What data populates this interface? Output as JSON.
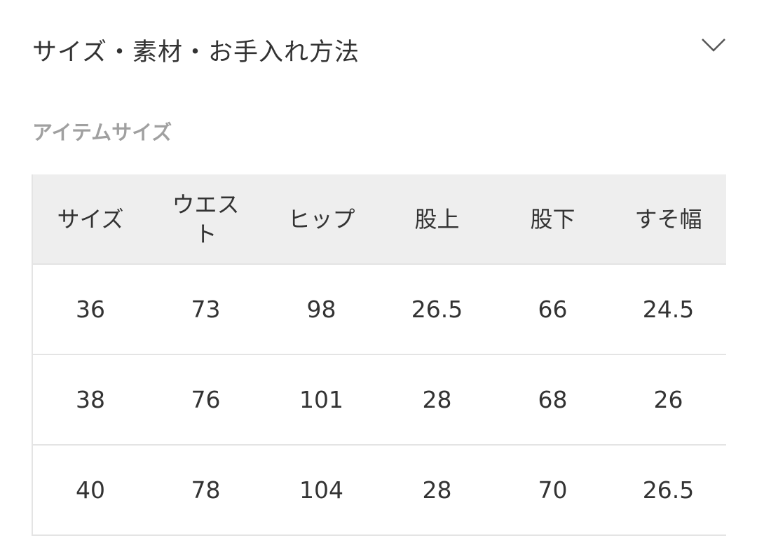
{
  "section": {
    "title": "サイズ・素材・お手入れ方法",
    "toggle_icon": "chevron-down-icon"
  },
  "item_size": {
    "label": "アイテムサイズ"
  },
  "table": {
    "headers": [
      "サイズ",
      "ウエスト",
      "ヒップ",
      "股上",
      "股下",
      "すそ幅"
    ],
    "rows": [
      [
        "36",
        "73",
        "98",
        "26.5",
        "66",
        "24.5"
      ],
      [
        "38",
        "76",
        "101",
        "28",
        "68",
        "26"
      ],
      [
        "40",
        "78",
        "104",
        "28",
        "70",
        "26.5"
      ]
    ]
  }
}
